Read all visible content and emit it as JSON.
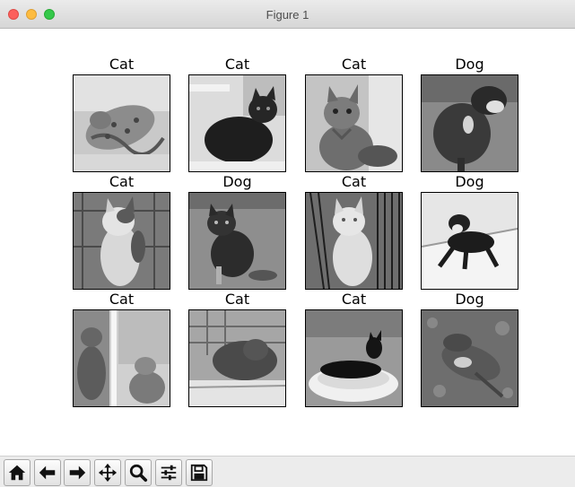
{
  "window": {
    "title": "Figure 1"
  },
  "panels": [
    {
      "label": "Cat"
    },
    {
      "label": "Cat"
    },
    {
      "label": "Cat"
    },
    {
      "label": "Dog"
    },
    {
      "label": "Cat"
    },
    {
      "label": "Dog"
    },
    {
      "label": "Cat"
    },
    {
      "label": "Dog"
    },
    {
      "label": "Cat"
    },
    {
      "label": "Cat"
    },
    {
      "label": "Cat"
    },
    {
      "label": "Dog"
    }
  ],
  "toolbar": {
    "buttons": [
      {
        "icon": "home-icon"
      },
      {
        "icon": "back-arrow-icon"
      },
      {
        "icon": "forward-arrow-icon"
      },
      {
        "icon": "pan-icon"
      },
      {
        "icon": "zoom-icon"
      },
      {
        "icon": "configure-subplots-icon"
      },
      {
        "icon": "save-icon"
      }
    ]
  }
}
